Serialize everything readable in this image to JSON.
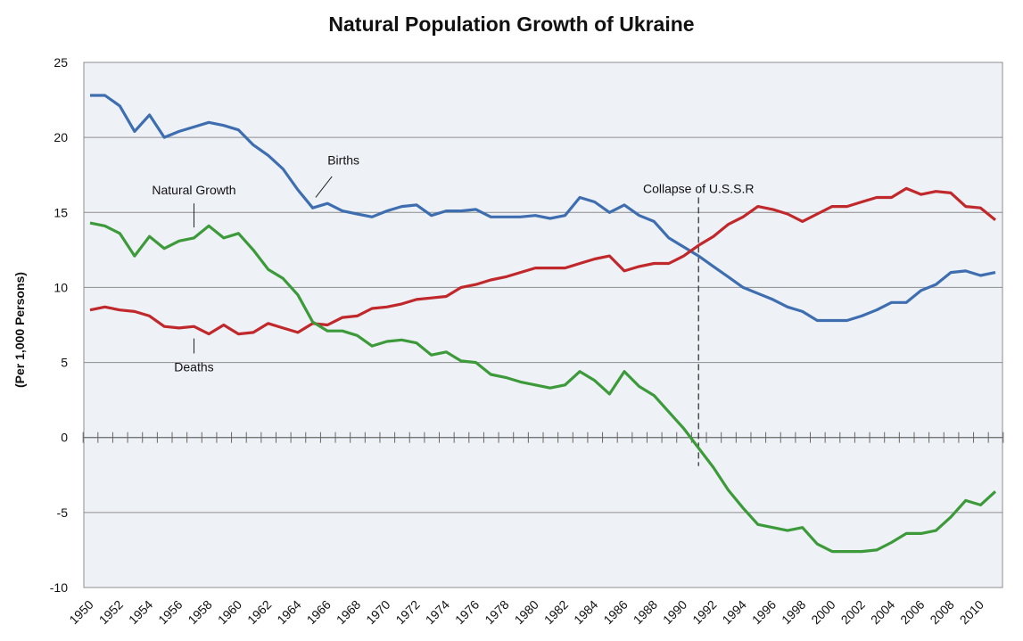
{
  "chart_data": {
    "type": "line",
    "title": "Natural Population Growth of Ukraine",
    "ylabel": "(Per 1,000 Persons)",
    "xlabel": "",
    "ylim": [
      -10,
      25
    ],
    "yticks": [
      25,
      20,
      15,
      10,
      5,
      0,
      -5,
      -10
    ],
    "xlim": [
      1950,
      2011
    ],
    "xtick_labels": [
      "1950",
      "1952",
      "1954",
      "1956",
      "1958",
      "1960",
      "1962",
      "1964",
      "1966",
      "1968",
      "1970",
      "1972",
      "1974",
      "1976",
      "1978",
      "1980",
      "1982",
      "1984",
      "1986",
      "1988",
      "1990",
      "1992",
      "1994",
      "1996",
      "1998",
      "2000",
      "2002",
      "2004",
      "2006",
      "2008",
      "2010"
    ],
    "grid": true,
    "x": [
      1950,
      1951,
      1952,
      1953,
      1954,
      1955,
      1956,
      1957,
      1958,
      1959,
      1960,
      1961,
      1962,
      1963,
      1964,
      1965,
      1966,
      1967,
      1968,
      1969,
      1970,
      1971,
      1972,
      1973,
      1974,
      1975,
      1976,
      1977,
      1978,
      1979,
      1980,
      1981,
      1982,
      1983,
      1984,
      1985,
      1986,
      1987,
      1988,
      1989,
      1990,
      1991,
      1992,
      1993,
      1994,
      1995,
      1996,
      1997,
      1998,
      1999,
      2000,
      2001,
      2002,
      2003,
      2004,
      2005,
      2006,
      2007,
      2008,
      2009,
      2010,
      2011
    ],
    "series": [
      {
        "name": "Births",
        "color": "#3e6eb0",
        "values": [
          22.8,
          22.8,
          22.1,
          20.4,
          21.5,
          20.0,
          20.4,
          20.7,
          21.0,
          20.8,
          20.5,
          19.5,
          18.8,
          17.9,
          16.5,
          15.3,
          15.6,
          15.1,
          14.9,
          14.7,
          15.1,
          15.4,
          15.5,
          14.8,
          15.1,
          15.1,
          15.2,
          14.7,
          14.7,
          14.7,
          14.8,
          14.6,
          14.8,
          16.0,
          15.7,
          15.0,
          15.5,
          14.8,
          14.4,
          13.3,
          12.7,
          12.1,
          11.4,
          10.7,
          10.0,
          9.6,
          9.2,
          8.7,
          8.4,
          7.8,
          7.8,
          7.8,
          8.1,
          8.5,
          9.0,
          9.0,
          9.8,
          10.2,
          11.0,
          11.1,
          10.8,
          11.0
        ]
      },
      {
        "name": "Deaths",
        "color": "#c0282b",
        "values": [
          8.5,
          8.7,
          8.5,
          8.4,
          8.1,
          7.4,
          7.3,
          7.4,
          6.9,
          7.5,
          6.9,
          7.0,
          7.6,
          7.3,
          7.0,
          7.6,
          7.5,
          8.0,
          8.1,
          8.6,
          8.7,
          8.9,
          9.2,
          9.3,
          9.4,
          10.0,
          10.2,
          10.5,
          10.7,
          11.0,
          11.3,
          11.3,
          11.3,
          11.6,
          11.9,
          12.1,
          11.1,
          11.4,
          11.6,
          11.6,
          12.1,
          12.8,
          13.4,
          14.2,
          14.7,
          15.4,
          15.2,
          14.9,
          14.4,
          14.9,
          15.4,
          15.4,
          15.7,
          16.0,
          16.0,
          16.6,
          16.2,
          16.4,
          16.3,
          15.4,
          15.3,
          14.5
        ]
      },
      {
        "name": "Natural Growth",
        "color": "#3d9a3a",
        "values": [
          14.3,
          14.1,
          13.6,
          12.1,
          13.4,
          12.6,
          13.1,
          13.3,
          14.1,
          13.3,
          13.6,
          12.5,
          11.2,
          10.6,
          9.5,
          7.7,
          7.1,
          7.1,
          6.8,
          6.1,
          6.4,
          6.5,
          6.3,
          5.5,
          5.7,
          5.1,
          5.0,
          4.2,
          4.0,
          3.7,
          3.5,
          3.3,
          3.5,
          4.4,
          3.8,
          2.9,
          4.4,
          3.4,
          2.8,
          1.7,
          0.6,
          -0.7,
          -2.0,
          -3.5,
          -4.7,
          -5.8,
          -6.0,
          -6.2,
          -6.0,
          -7.1,
          -7.6,
          -7.6,
          -7.6,
          -7.5,
          -7.0,
          -6.4,
          -6.4,
          -6.2,
          -5.3,
          -4.2,
          -4.5,
          -3.6
        ]
      }
    ],
    "annotations": [
      {
        "text": "Births",
        "x": 1966,
        "y": 18.5
      },
      {
        "text": "Natural Growth",
        "x": 1957,
        "y": 16.5
      },
      {
        "text": "Deaths",
        "x": 1957,
        "y": 4.7
      },
      {
        "text": "Collapse of U.S.S.R",
        "x": 1991,
        "y": 16.6
      }
    ],
    "event_line": {
      "x": 1991,
      "label": "Collapse of U.S.S.R"
    }
  }
}
